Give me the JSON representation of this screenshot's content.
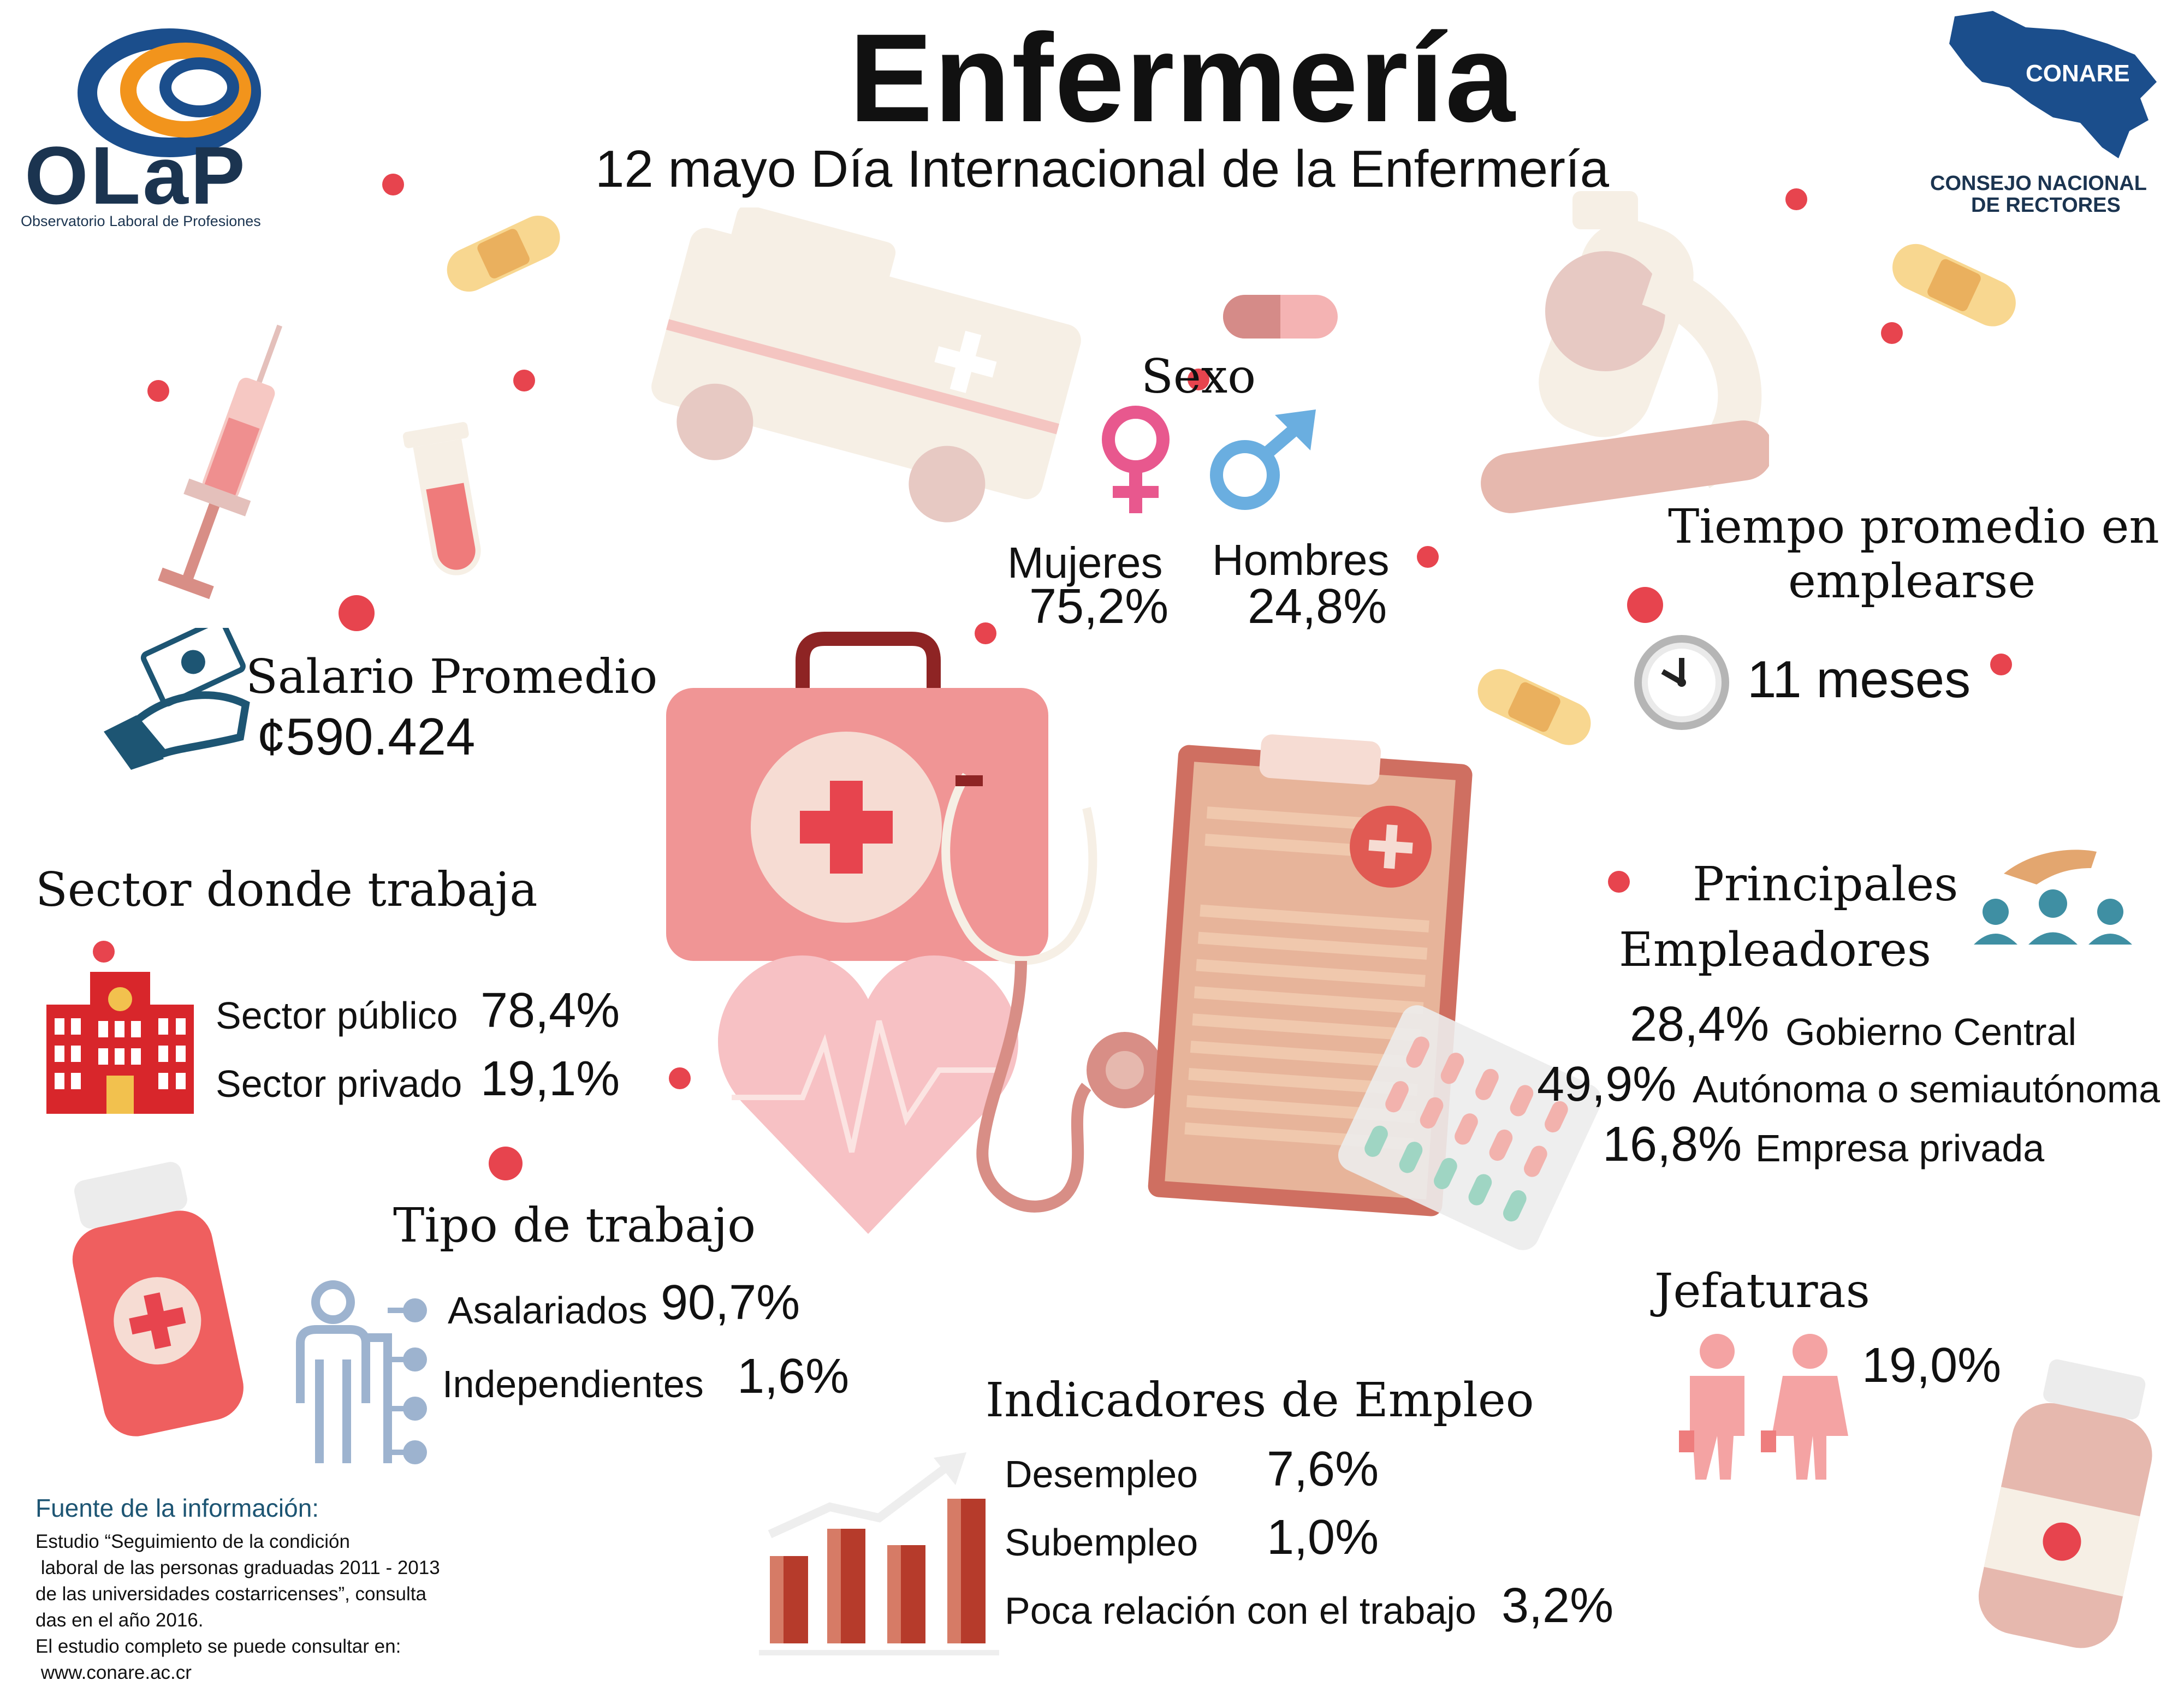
{
  "header": {
    "title": "Enfermería",
    "subtitle": "12 mayo Día Internacional de la Enfermería"
  },
  "logos": {
    "olap": {
      "name": "OLaP",
      "tagline": "Observatorio Laboral de Profesiones"
    },
    "conare": {
      "name": "CONARE",
      "caption_line1": "CONSEJO NACIONAL",
      "caption_line2": "DE RECTORES"
    }
  },
  "sexo": {
    "heading": "Sexo",
    "mujeres_label": "Mujeres",
    "mujeres_value": "75,2%",
    "hombres_label": "Hombres",
    "hombres_value": "24,8%"
  },
  "salario": {
    "heading": "Salario Promedio",
    "value": "¢590.424"
  },
  "tiempo": {
    "heading_line1": "Tiempo promedio en",
    "heading_line2": "emplearse",
    "value": "11 meses"
  },
  "sector": {
    "heading": "Sector donde trabaja",
    "items": [
      {
        "label": "Sector público",
        "value": "78,4%"
      },
      {
        "label": "Sector privado",
        "value": "19,1%"
      }
    ]
  },
  "empleadores": {
    "heading_line1": "Principales",
    "heading_line2": "Empleadores",
    "items": [
      {
        "value": "28,4%",
        "label": "Gobierno Central"
      },
      {
        "value": "49,9%",
        "label": "Autónoma o semiautónoma"
      },
      {
        "value": "16,8%",
        "label": "Empresa privada"
      }
    ]
  },
  "tipo": {
    "heading": "Tipo de trabajo",
    "items": [
      {
        "label": "Asalariados",
        "value": "90,7%"
      },
      {
        "label": "Independientes",
        "value": "1,6%"
      }
    ]
  },
  "jefaturas": {
    "heading": "Jefaturas",
    "value": "19,0%"
  },
  "indicadores": {
    "heading": "Indicadores de Empleo",
    "items": [
      {
        "label": "Desempleo",
        "value": "7,6%"
      },
      {
        "label": "Subempleo",
        "value": "1,0%"
      },
      {
        "label": "Poca relación con el trabajo",
        "value": "3,2%"
      }
    ]
  },
  "fuente": {
    "heading": "Fuente de la información:",
    "lines": [
      "Estudio “Seguimiento de la condición",
      " laboral de las personas graduadas 2011 - 2013",
      "de las universidades costarricenses”, consulta",
      "das en el año 2016.",
      "El estudio completo se puede consultar en:",
      " www.conare.ac.cr"
    ]
  },
  "colors": {
    "title": "#ef6766",
    "heading": "#1d5573",
    "female": "#e8588e",
    "male": "#6aaee0",
    "accent_red": "#e7444e",
    "building": "#d8262b"
  },
  "icons": [
    "olap-logo",
    "conare-map-logo",
    "bandage-icon",
    "ambulance-icon",
    "pill-icon",
    "syringe-icon",
    "test-tube-icon",
    "microscope-icon",
    "female-symbol-icon",
    "male-symbol-icon",
    "money-hand-icon",
    "clock-icon",
    "first-aid-kit-icon",
    "stethoscope-icon",
    "heart-pulse-icon",
    "clipboard-icon",
    "pills-blister-icon",
    "hospital-building-icon",
    "employer-hand-people-icon",
    "medicine-bottle-icon",
    "worker-network-icon",
    "managers-icon",
    "bar-chart-growth-icon"
  ]
}
